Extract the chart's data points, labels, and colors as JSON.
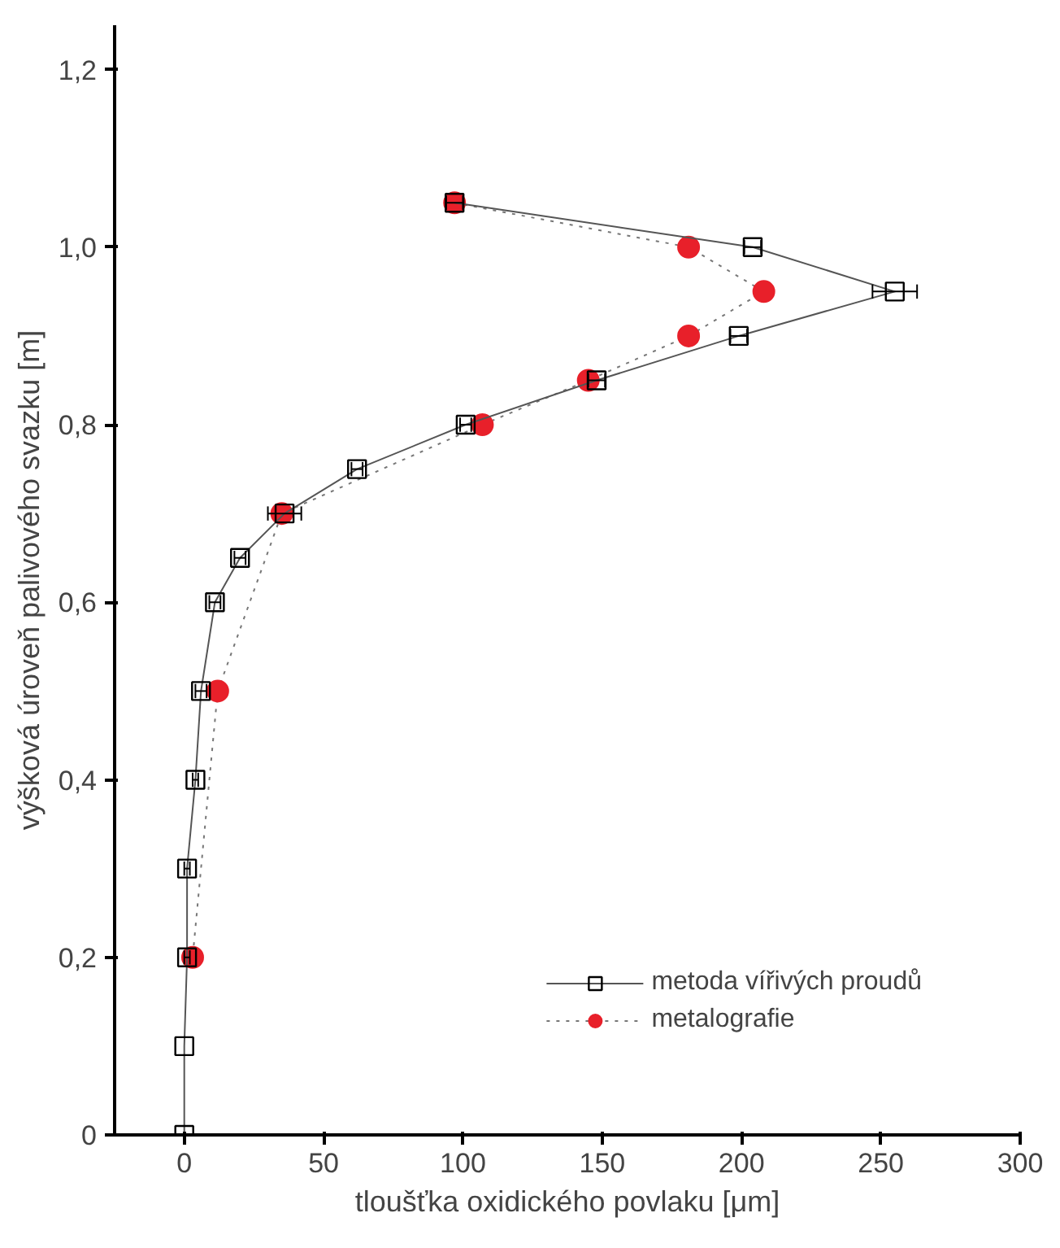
{
  "chart_data": {
    "type": "line",
    "xlabel": "tloušťka oxidického povlaku [μm]",
    "ylabel": "výšková úroveň palivového svazku [m]",
    "xlim": [
      -25,
      300
    ],
    "ylim": [
      0,
      1.25
    ],
    "xticks": [
      0,
      50,
      100,
      150,
      200,
      250,
      300
    ],
    "yticks": [
      {
        "value": 0,
        "label": "0"
      },
      {
        "value": 0.2,
        "label": "0,2"
      },
      {
        "value": 0.4,
        "label": "0,4"
      },
      {
        "value": 0.6,
        "label": "0,6"
      },
      {
        "value": 0.8,
        "label": "0,8"
      },
      {
        "value": 1.0,
        "label": "1,0"
      },
      {
        "value": 1.2,
        "label": "1,2"
      }
    ],
    "grid": false,
    "legend": "bottom right",
    "series": [
      {
        "name": "metoda vířivých proudů",
        "color": "#000000",
        "marker": "square",
        "line_style": "solid",
        "x": [
          97,
          204,
          255,
          199,
          148,
          101,
          62,
          36,
          20,
          11,
          6,
          4,
          1,
          1,
          0,
          0
        ],
        "values": [
          1.05,
          1.0,
          0.95,
          0.9,
          0.85,
          0.8,
          0.75,
          0.7,
          0.65,
          0.6,
          0.5,
          0.4,
          0.3,
          0.2,
          0.1,
          0
        ],
        "xerrors": [
          3,
          3,
          8,
          3,
          3,
          2,
          2,
          6,
          2,
          2,
          2,
          1,
          1,
          1,
          null,
          null
        ]
      },
      {
        "name": "metalografie",
        "color": "#e8202a",
        "marker": "circle",
        "line_style": "dotted",
        "x": [
          97,
          181,
          208,
          181,
          145,
          107,
          35,
          12,
          3
        ],
        "values": [
          1.05,
          1.0,
          0.95,
          0.9,
          0.85,
          0.8,
          0.7,
          0.5,
          0.2
        ]
      }
    ]
  }
}
